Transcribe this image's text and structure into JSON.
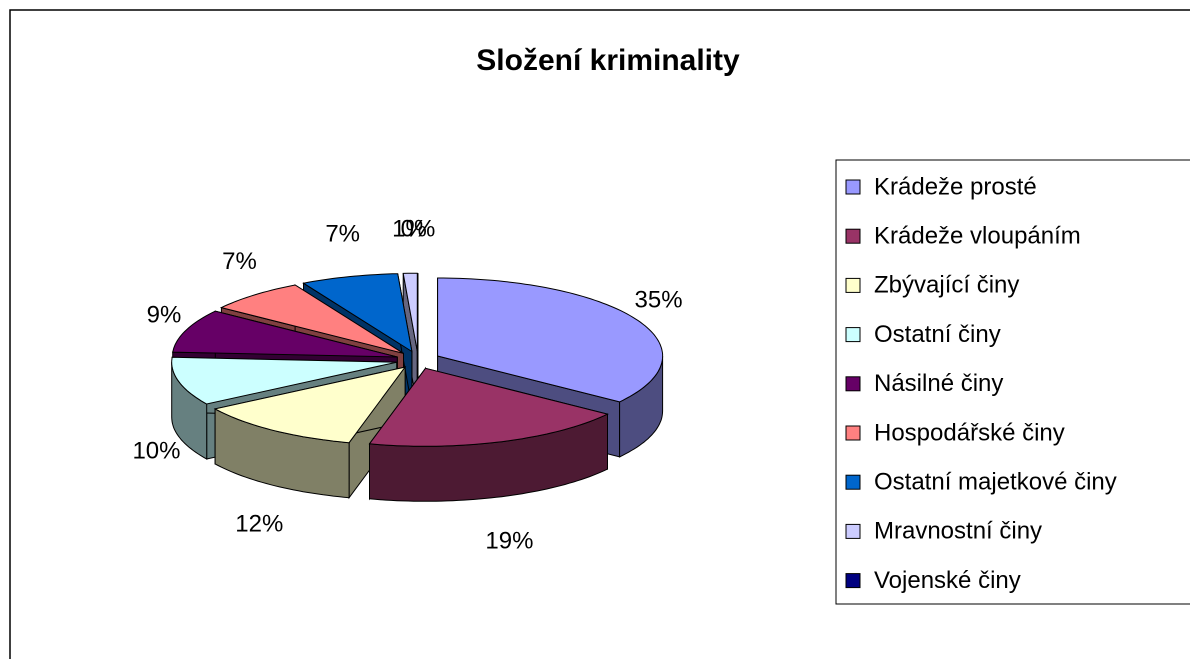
{
  "chart_data": {
    "type": "pie",
    "title": "Složení kriminality",
    "categories": [
      "Krádeže prosté",
      "Krádeže vloupáním",
      "Zbývající činy",
      "Ostatní činy",
      "Násilné činy",
      "Hospodářské činy",
      "Ostatní majetkové činy",
      "Mravnostní činy",
      "Vojenské činy"
    ],
    "values": [
      35,
      19,
      12,
      10,
      9,
      7,
      7,
      1,
      0
    ],
    "value_labels": [
      "35%",
      "19%",
      "12%",
      "10%",
      "9%",
      "7%",
      "7%",
      "1%",
      "0%"
    ],
    "colors": [
      "#9999ff",
      "#993366",
      "#ffffcc",
      "#ccffff",
      "#660066",
      "#ff8080",
      "#0066cc",
      "#ccccff",
      "#000080"
    ],
    "legend": "right"
  }
}
